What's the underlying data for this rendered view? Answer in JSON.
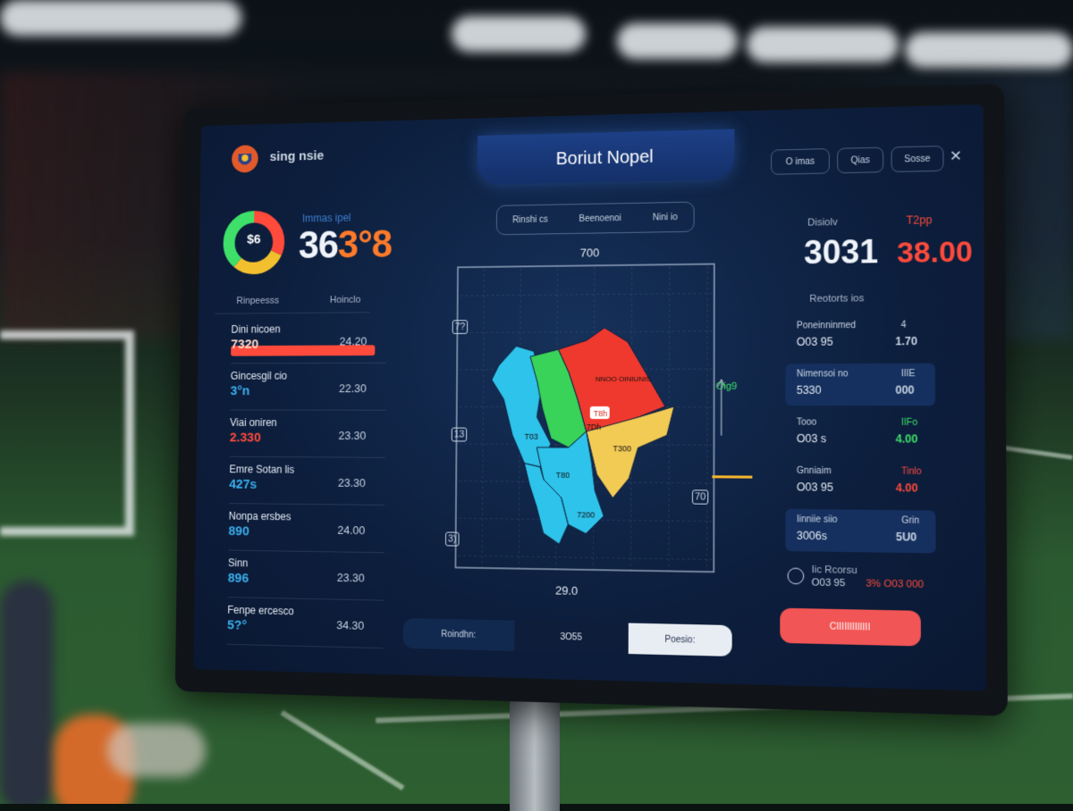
{
  "header": {
    "app_title": "sing nsie",
    "center_title": "Boriut Nopel",
    "top_buttons": [
      "O imas",
      "Qias",
      "Sosse"
    ],
    "close_glyph": "✕"
  },
  "left_panel": {
    "gauge_label": "Immas ipel",
    "gauge_center": "$6",
    "big_number": "36",
    "big_number_highlight": "3°8",
    "tab_a": "Rinpeesss",
    "tab_b": "Hoinclo",
    "rows": [
      {
        "label": "Dini nicoen",
        "value": "7320",
        "right": "24.20",
        "accent": "#ff4a3c",
        "bar_fraction": 1.0
      },
      {
        "label": "Gincesgil cio",
        "value": "3°n",
        "right": "22.30",
        "accent": "#3ab0ee"
      },
      {
        "label": "Viai oniren",
        "value": "2.330",
        "right": "23.30",
        "accent": "#ff4a3c"
      },
      {
        "label": "Emre Sotan lis",
        "value": "427s",
        "right": "23.30",
        "accent": "#3ab0ee"
      },
      {
        "label": "Nonpa ersbes",
        "value": "890",
        "right": "24.00",
        "accent": "#3ab0ee"
      },
      {
        "label": "Sinn",
        "value": "896",
        "right": "23.30",
        "accent": "#3ab0ee"
      },
      {
        "label": "Fenpe ercesco",
        "value": "5?°",
        "right": "34.30",
        "accent": "#3ab0ee"
      }
    ],
    "colors": {
      "gauge_red": "#ff4a3c",
      "gauge_green": "#3ee06a",
      "gauge_yellow": "#f2c02e"
    }
  },
  "center": {
    "filter_pills": [
      "Rinshi cs",
      "Beenoenoi",
      "Nini io"
    ],
    "map_top_label": "700",
    "map_bottom_label": "29.0",
    "axis_left_labels": [
      "7?",
      "13",
      "3)"
    ],
    "axis_right_label": "70",
    "side_indicator": "Oig9",
    "regions": [
      {
        "label": "",
        "color": "#2ec3ea"
      },
      {
        "label": "T03",
        "color": "#39d35a"
      },
      {
        "label": "NNOO OINIUNIS",
        "color": "#f0392e"
      },
      {
        "label": "T300",
        "color": "#f2cb55"
      },
      {
        "label": "T80",
        "color": "#2ec3ea"
      },
      {
        "label": "7200",
        "color": "#2ec3ea"
      }
    ],
    "region_badge": "T8h",
    "region_badge2": "7Dh",
    "segmented": [
      "Roindhn:",
      "3O55",
      "Poesio:"
    ]
  },
  "right_panel": {
    "label_top_left": "Disiolv",
    "label_top_right": "T2pp",
    "score_left": "3031",
    "score_right": "38.00",
    "sub_label": "Reotorts ios",
    "rows": [
      {
        "label": "Poneinninmed",
        "right_label": "4",
        "value": "O03 95",
        "right": "1.70",
        "highlight": false,
        "accent": "#c8d4e4"
      },
      {
        "label": "Nimensoi no",
        "right_label": "IIIE",
        "value": "5330",
        "right": "000",
        "highlight": true,
        "accent": "#c8d4e4"
      },
      {
        "label": "Tooo",
        "right_label": "IIFo",
        "value": "O03 s",
        "right": "4.00",
        "highlight": false,
        "accent": "#3ee06a"
      },
      {
        "label": "Gnniaim",
        "right_label": "Tinlo",
        "value": "O03 95",
        "right": "4.00",
        "highlight": false,
        "accent": "#ff4a3c"
      },
      {
        "label": "Iinniie siio",
        "right_label": "Grin",
        "value": "3006s",
        "right": "5U0",
        "highlight": true,
        "accent": "#c8d4e4"
      }
    ],
    "footer_label": "Iic Rcorsu",
    "footer_value": "O03 95",
    "footer_value_red": "3% O03 000",
    "action_button": "CIIIIIIIIIIIII",
    "colors": {
      "accent_red": "#ff4a3c",
      "button": "#f25555"
    }
  }
}
